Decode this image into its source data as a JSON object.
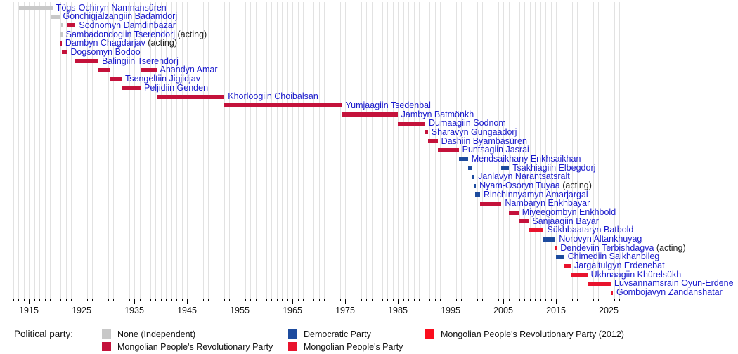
{
  "chart_data": {
    "type": "timeline",
    "x_axis": {
      "min": 1911,
      "max": 2027,
      "minor_tick_interval": 1,
      "labeled_ticks": [
        1915,
        1925,
        1935,
        1945,
        1955,
        1965,
        1975,
        1985,
        1995,
        2005,
        2015,
        2025
      ]
    },
    "colors": {
      "link_text": "#1a1acc",
      "acting_text": "#222222",
      "axis_text": "#111111",
      "gridline": "#e2e2e2",
      "axis_line": "#000000"
    },
    "parties": {
      "none": {
        "label": "None (Independent)",
        "color": "#c8c8c8"
      },
      "mprp": {
        "label": "Mongolian People's Revolutionary Party",
        "color": "#c4123b"
      },
      "dp": {
        "label": "Democratic Party",
        "color": "#1d4b9e"
      },
      "mpp": {
        "label": "Mongolian People's Party",
        "color": "#e8132d"
      },
      "mprp2012": {
        "label": "Mongolian People's Revolutionary Party (2012)",
        "color": "#fb0d1d"
      }
    },
    "legend": {
      "title": "Political party:",
      "entries": [
        "none",
        "mprp",
        "dp",
        "mpp",
        "mprp2012"
      ]
    },
    "people": [
      {
        "name": "Tögs-Ochiryn Namnansüren",
        "suffix": "",
        "terms": [
          {
            "party": "none",
            "start": 1913.1,
            "end": 1919.5
          }
        ]
      },
      {
        "name": "Gonchigjalzangiin Badamdorj",
        "suffix": "",
        "terms": [
          {
            "party": "none",
            "start": 1919.2,
            "end": 1920.8
          }
        ]
      },
      {
        "name": "Sodnomyn Damdinbazar",
        "suffix": "",
        "terms": [
          {
            "party": "none",
            "start": 1921.15,
            "end": 1921.5
          },
          {
            "party": "mprp",
            "start": 1922.35,
            "end": 1923.85
          }
        ]
      },
      {
        "name": "Sambadondogiin Tserendorj",
        "suffix": "(acting)",
        "terms": [
          {
            "party": "none",
            "start": 1921.05,
            "end": 1921.35
          }
        ]
      },
      {
        "name": "Dambyn Chagdarjav",
        "suffix": "(acting)",
        "terms": [
          {
            "party": "mprp",
            "start": 1920.95,
            "end": 1921.25
          }
        ]
      },
      {
        "name": "Dogsomyn Bodoo",
        "suffix": "",
        "terms": [
          {
            "party": "mprp",
            "start": 1921.3,
            "end": 1922.25
          }
        ]
      },
      {
        "name": "Balingiin Tserendorj",
        "suffix": "",
        "terms": [
          {
            "party": "mprp",
            "start": 1923.7,
            "end": 1928.2
          }
        ]
      },
      {
        "name": "Anandyn Amar",
        "suffix": "",
        "terms": [
          {
            "party": "mprp",
            "start": 1928.2,
            "end": 1930.3
          },
          {
            "party": "mprp",
            "start": 1936.2,
            "end": 1939.2
          }
        ]
      },
      {
        "name": "Tsengeltiin Jigjidjav",
        "suffix": "",
        "terms": [
          {
            "party": "mprp",
            "start": 1930.3,
            "end": 1932.6
          }
        ]
      },
      {
        "name": "Peljidiin Genden",
        "suffix": "",
        "terms": [
          {
            "party": "mprp",
            "start": 1932.6,
            "end": 1936.2
          }
        ]
      },
      {
        "name": "Khorloogiin Choibalsan",
        "suffix": "",
        "terms": [
          {
            "party": "mprp",
            "start": 1939.2,
            "end": 1952.1
          }
        ]
      },
      {
        "name": "Yumjaagiin Tsedenbal",
        "suffix": "",
        "terms": [
          {
            "party": "mprp",
            "start": 1952.1,
            "end": 1974.4
          }
        ]
      },
      {
        "name": "Jambyn Batmönkh",
        "suffix": "",
        "terms": [
          {
            "party": "mprp",
            "start": 1974.4,
            "end": 1984.95
          }
        ]
      },
      {
        "name": "Dumaagiin Sodnom",
        "suffix": "",
        "terms": [
          {
            "party": "mprp",
            "start": 1984.95,
            "end": 1990.2
          }
        ]
      },
      {
        "name": "Sharavyn Gungaadorj",
        "suffix": "",
        "terms": [
          {
            "party": "mprp",
            "start": 1990.2,
            "end": 1990.7
          }
        ]
      },
      {
        "name": "Dashiin Byambasüren",
        "suffix": "",
        "terms": [
          {
            "party": "mprp",
            "start": 1990.7,
            "end": 1992.55
          }
        ]
      },
      {
        "name": "Puntsagiin Jasrai",
        "suffix": "",
        "terms": [
          {
            "party": "mprp",
            "start": 1992.55,
            "end": 1996.55
          }
        ]
      },
      {
        "name": "Mendsaikhany Enkhsaikhan",
        "suffix": "",
        "terms": [
          {
            "party": "dp",
            "start": 1996.55,
            "end": 1998.3
          }
        ]
      },
      {
        "name": "Tsakhiagiin Elbegdorj",
        "suffix": "",
        "terms": [
          {
            "party": "dp",
            "start": 1998.3,
            "end": 1998.95
          },
          {
            "party": "dp",
            "start": 2004.65,
            "end": 2006.1
          }
        ]
      },
      {
        "name": "Janlavyn Narantsatsralt",
        "suffix": "",
        "terms": [
          {
            "party": "dp",
            "start": 1998.95,
            "end": 1999.55
          }
        ]
      },
      {
        "name": "Nyam-Osoryn Tuyaa",
        "suffix": "(acting)",
        "terms": [
          {
            "party": "dp",
            "start": 1999.55,
            "end": 1999.7
          }
        ]
      },
      {
        "name": "Rinchinnyamyn Amarjargal",
        "suffix": "",
        "terms": [
          {
            "party": "dp",
            "start": 1999.7,
            "end": 2000.6
          }
        ]
      },
      {
        "name": "Nambaryn Enkhbayar",
        "suffix": "",
        "terms": [
          {
            "party": "mprp",
            "start": 2000.6,
            "end": 2004.65
          }
        ]
      },
      {
        "name": "Miyeegombyn Enkhbold",
        "suffix": "",
        "terms": [
          {
            "party": "mprp",
            "start": 2006.1,
            "end": 2007.9
          }
        ]
      },
      {
        "name": "Sanjaagiin Bayar",
        "suffix": "",
        "terms": [
          {
            "party": "mprp",
            "start": 2007.9,
            "end": 2009.85
          }
        ]
      },
      {
        "name": "Sükhbaataryn Batbold",
        "suffix": "",
        "terms": [
          {
            "party": "mpp",
            "start": 2009.85,
            "end": 2012.65
          }
        ]
      },
      {
        "name": "Norovyn Altankhuyag",
        "suffix": "",
        "terms": [
          {
            "party": "dp",
            "start": 2012.65,
            "end": 2014.9
          }
        ]
      },
      {
        "name": "Dendeviin Terbishdagva",
        "suffix": "(acting)",
        "terms": [
          {
            "party": "mpp",
            "start": 2014.9,
            "end": 2015.05
          }
        ]
      },
      {
        "name": "Chimediin Saikhanbileg",
        "suffix": "",
        "terms": [
          {
            "party": "dp",
            "start": 2014.95,
            "end": 2016.55
          }
        ]
      },
      {
        "name": "Jargaltulgyn Erdenebat",
        "suffix": "",
        "terms": [
          {
            "party": "mpp",
            "start": 2016.55,
            "end": 2017.8
          }
        ]
      },
      {
        "name": "Ukhnaagiin Khürelsükh",
        "suffix": "",
        "terms": [
          {
            "party": "mpp",
            "start": 2017.8,
            "end": 2020.95
          }
        ]
      },
      {
        "name": "Luvsannamsrain Oyun-Erdene",
        "suffix": "",
        "terms": [
          {
            "party": "mpp",
            "start": 2021.0,
            "end": 2025.4
          }
        ]
      },
      {
        "name": "Gombojavyn Zandanshatar",
        "suffix": "",
        "terms": [
          {
            "party": "mpp",
            "start": 2025.45,
            "end": 2025.8
          }
        ]
      }
    ]
  }
}
